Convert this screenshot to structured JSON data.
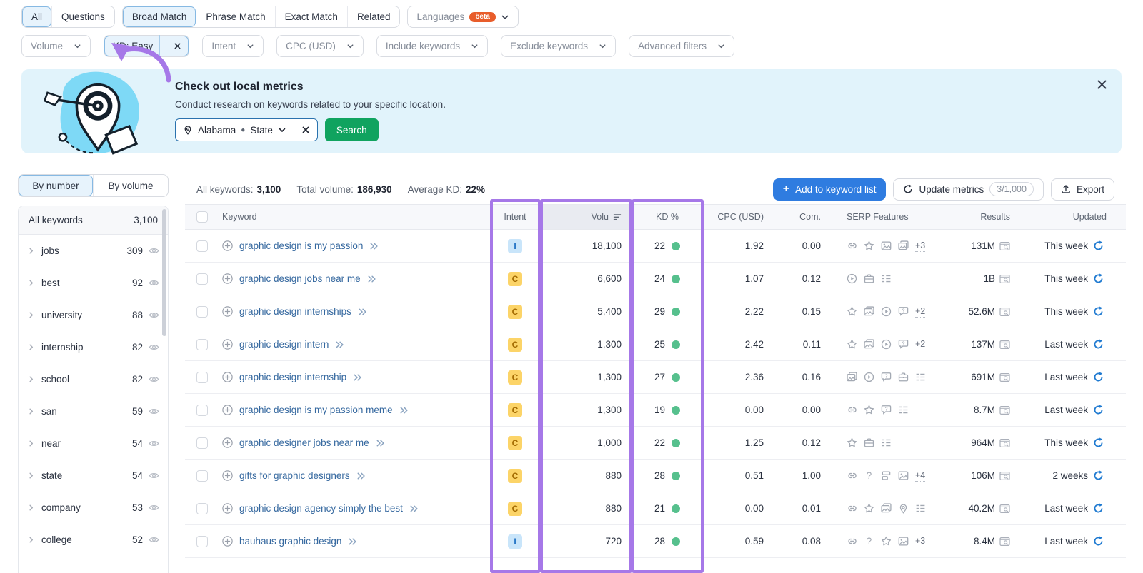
{
  "colors": {
    "accent_highlight": "#a678e8",
    "kd_easy_dot": "#56c08d",
    "primary_button": "#2f7ce0",
    "search_button": "#10a35f",
    "beta_badge": "#e85d2b"
  },
  "tabs": {
    "group1": [
      {
        "label": "All",
        "active": true
      },
      {
        "label": "Questions",
        "active": false
      }
    ],
    "group2": [
      {
        "label": "Broad Match",
        "active": true
      },
      {
        "label": "Phrase Match",
        "active": false
      },
      {
        "label": "Exact Match",
        "active": false
      },
      {
        "label": "Related",
        "active": false
      }
    ],
    "languages": {
      "label": "Languages",
      "badge": "beta"
    }
  },
  "filters": [
    {
      "label": "Volume",
      "state": "default"
    },
    {
      "label": "KD: Easy",
      "state": "active",
      "closable": true
    },
    {
      "label": "Intent",
      "state": "default"
    },
    {
      "label": "CPC (USD)",
      "state": "default"
    },
    {
      "label": "Include keywords",
      "state": "default"
    },
    {
      "label": "Exclude keywords",
      "state": "default"
    },
    {
      "label": "Advanced filters",
      "state": "default"
    }
  ],
  "banner": {
    "title": "Check out local metrics",
    "description": "Conduct research on keywords related to your specific location.",
    "location": "Alabama",
    "location_type": "State",
    "search_label": "Search"
  },
  "sidebar": {
    "tabs": [
      {
        "label": "By number",
        "active": true
      },
      {
        "label": "By volume",
        "active": false
      }
    ],
    "all_keywords_label": "All keywords",
    "all_keywords_count": "3,100",
    "groups": [
      {
        "label": "jobs",
        "count": "309"
      },
      {
        "label": "best",
        "count": "92"
      },
      {
        "label": "university",
        "count": "88"
      },
      {
        "label": "internship",
        "count": "82"
      },
      {
        "label": "school",
        "count": "82"
      },
      {
        "label": "san",
        "count": "59"
      },
      {
        "label": "near",
        "count": "54"
      },
      {
        "label": "state",
        "count": "54"
      },
      {
        "label": "company",
        "count": "53"
      },
      {
        "label": "college",
        "count": "52"
      }
    ]
  },
  "toolbar": {
    "stats": [
      {
        "label": "All keywords:",
        "value": "3,100"
      },
      {
        "label": "Total volume:",
        "value": "186,930"
      },
      {
        "label": "Average KD:",
        "value": "22%"
      }
    ],
    "add_label": "Add to keyword list",
    "update_label": "Update metrics",
    "update_quota": "3/1,000",
    "export_label": "Export"
  },
  "table": {
    "columns": [
      "Keyword",
      "Intent",
      "Volu",
      "KD %",
      "CPC (USD)",
      "Com.",
      "SERP Features",
      "Results",
      "Updated"
    ],
    "rows": [
      {
        "keyword": "graphic design is my passion",
        "intent": "I",
        "volume": "18,100",
        "kd": "22",
        "cpc": "1.92",
        "com": "0.00",
        "serp": [
          "link",
          "star",
          "image",
          "images"
        ],
        "serp_more": "+3",
        "results": "131M",
        "updated": "This week"
      },
      {
        "keyword": "graphic design jobs near me",
        "intent": "C",
        "volume": "6,600",
        "kd": "24",
        "cpc": "1.07",
        "com": "0.12",
        "serp": [
          "video",
          "briefcase",
          "list"
        ],
        "serp_more": "",
        "results": "1B",
        "updated": "This week"
      },
      {
        "keyword": "graphic design internships",
        "intent": "C",
        "volume": "5,400",
        "kd": "29",
        "cpc": "2.22",
        "com": "0.15",
        "serp": [
          "star",
          "images",
          "video",
          "faq"
        ],
        "serp_more": "+2",
        "results": "52.6M",
        "updated": "This week"
      },
      {
        "keyword": "graphic design intern",
        "intent": "C",
        "volume": "1,300",
        "kd": "25",
        "cpc": "2.42",
        "com": "0.11",
        "serp": [
          "star",
          "images",
          "video",
          "faq"
        ],
        "serp_more": "+2",
        "results": "137M",
        "updated": "Last week"
      },
      {
        "keyword": "graphic design internship",
        "intent": "C",
        "volume": "1,300",
        "kd": "27",
        "cpc": "2.36",
        "com": "0.16",
        "serp": [
          "images",
          "video",
          "faq",
          "briefcase",
          "list"
        ],
        "serp_more": "",
        "results": "691M",
        "updated": "Last week"
      },
      {
        "keyword": "graphic design is my passion meme",
        "intent": "C",
        "volume": "1,300",
        "kd": "19",
        "cpc": "0.00",
        "com": "0.00",
        "serp": [
          "link",
          "star",
          "faq",
          "list"
        ],
        "serp_more": "",
        "results": "8.7M",
        "updated": "Last week"
      },
      {
        "keyword": "graphic designer jobs near me",
        "intent": "C",
        "volume": "1,000",
        "kd": "22",
        "cpc": "1.25",
        "com": "0.12",
        "serp": [
          "star",
          "briefcase",
          "list"
        ],
        "serp_more": "",
        "results": "964M",
        "updated": "This week"
      },
      {
        "keyword": "gifts for graphic designers",
        "intent": "C",
        "volume": "880",
        "kd": "28",
        "cpc": "0.51",
        "com": "1.00",
        "serp": [
          "link",
          "question",
          "sitelinks",
          "image"
        ],
        "serp_more": "+4",
        "results": "106M",
        "updated": "2 weeks"
      },
      {
        "keyword": "graphic design agency simply the best",
        "intent": "C",
        "volume": "880",
        "kd": "21",
        "cpc": "0.00",
        "com": "0.01",
        "serp": [
          "link",
          "star",
          "images",
          "location",
          "list"
        ],
        "serp_more": "",
        "results": "40.2M",
        "updated": "Last week"
      },
      {
        "keyword": "bauhaus graphic design",
        "intent": "I",
        "volume": "720",
        "kd": "28",
        "cpc": "0.59",
        "com": "0.08",
        "serp": [
          "link",
          "question",
          "star",
          "image"
        ],
        "serp_more": "+3",
        "results": "8.4M",
        "updated": "Last week"
      }
    ]
  }
}
